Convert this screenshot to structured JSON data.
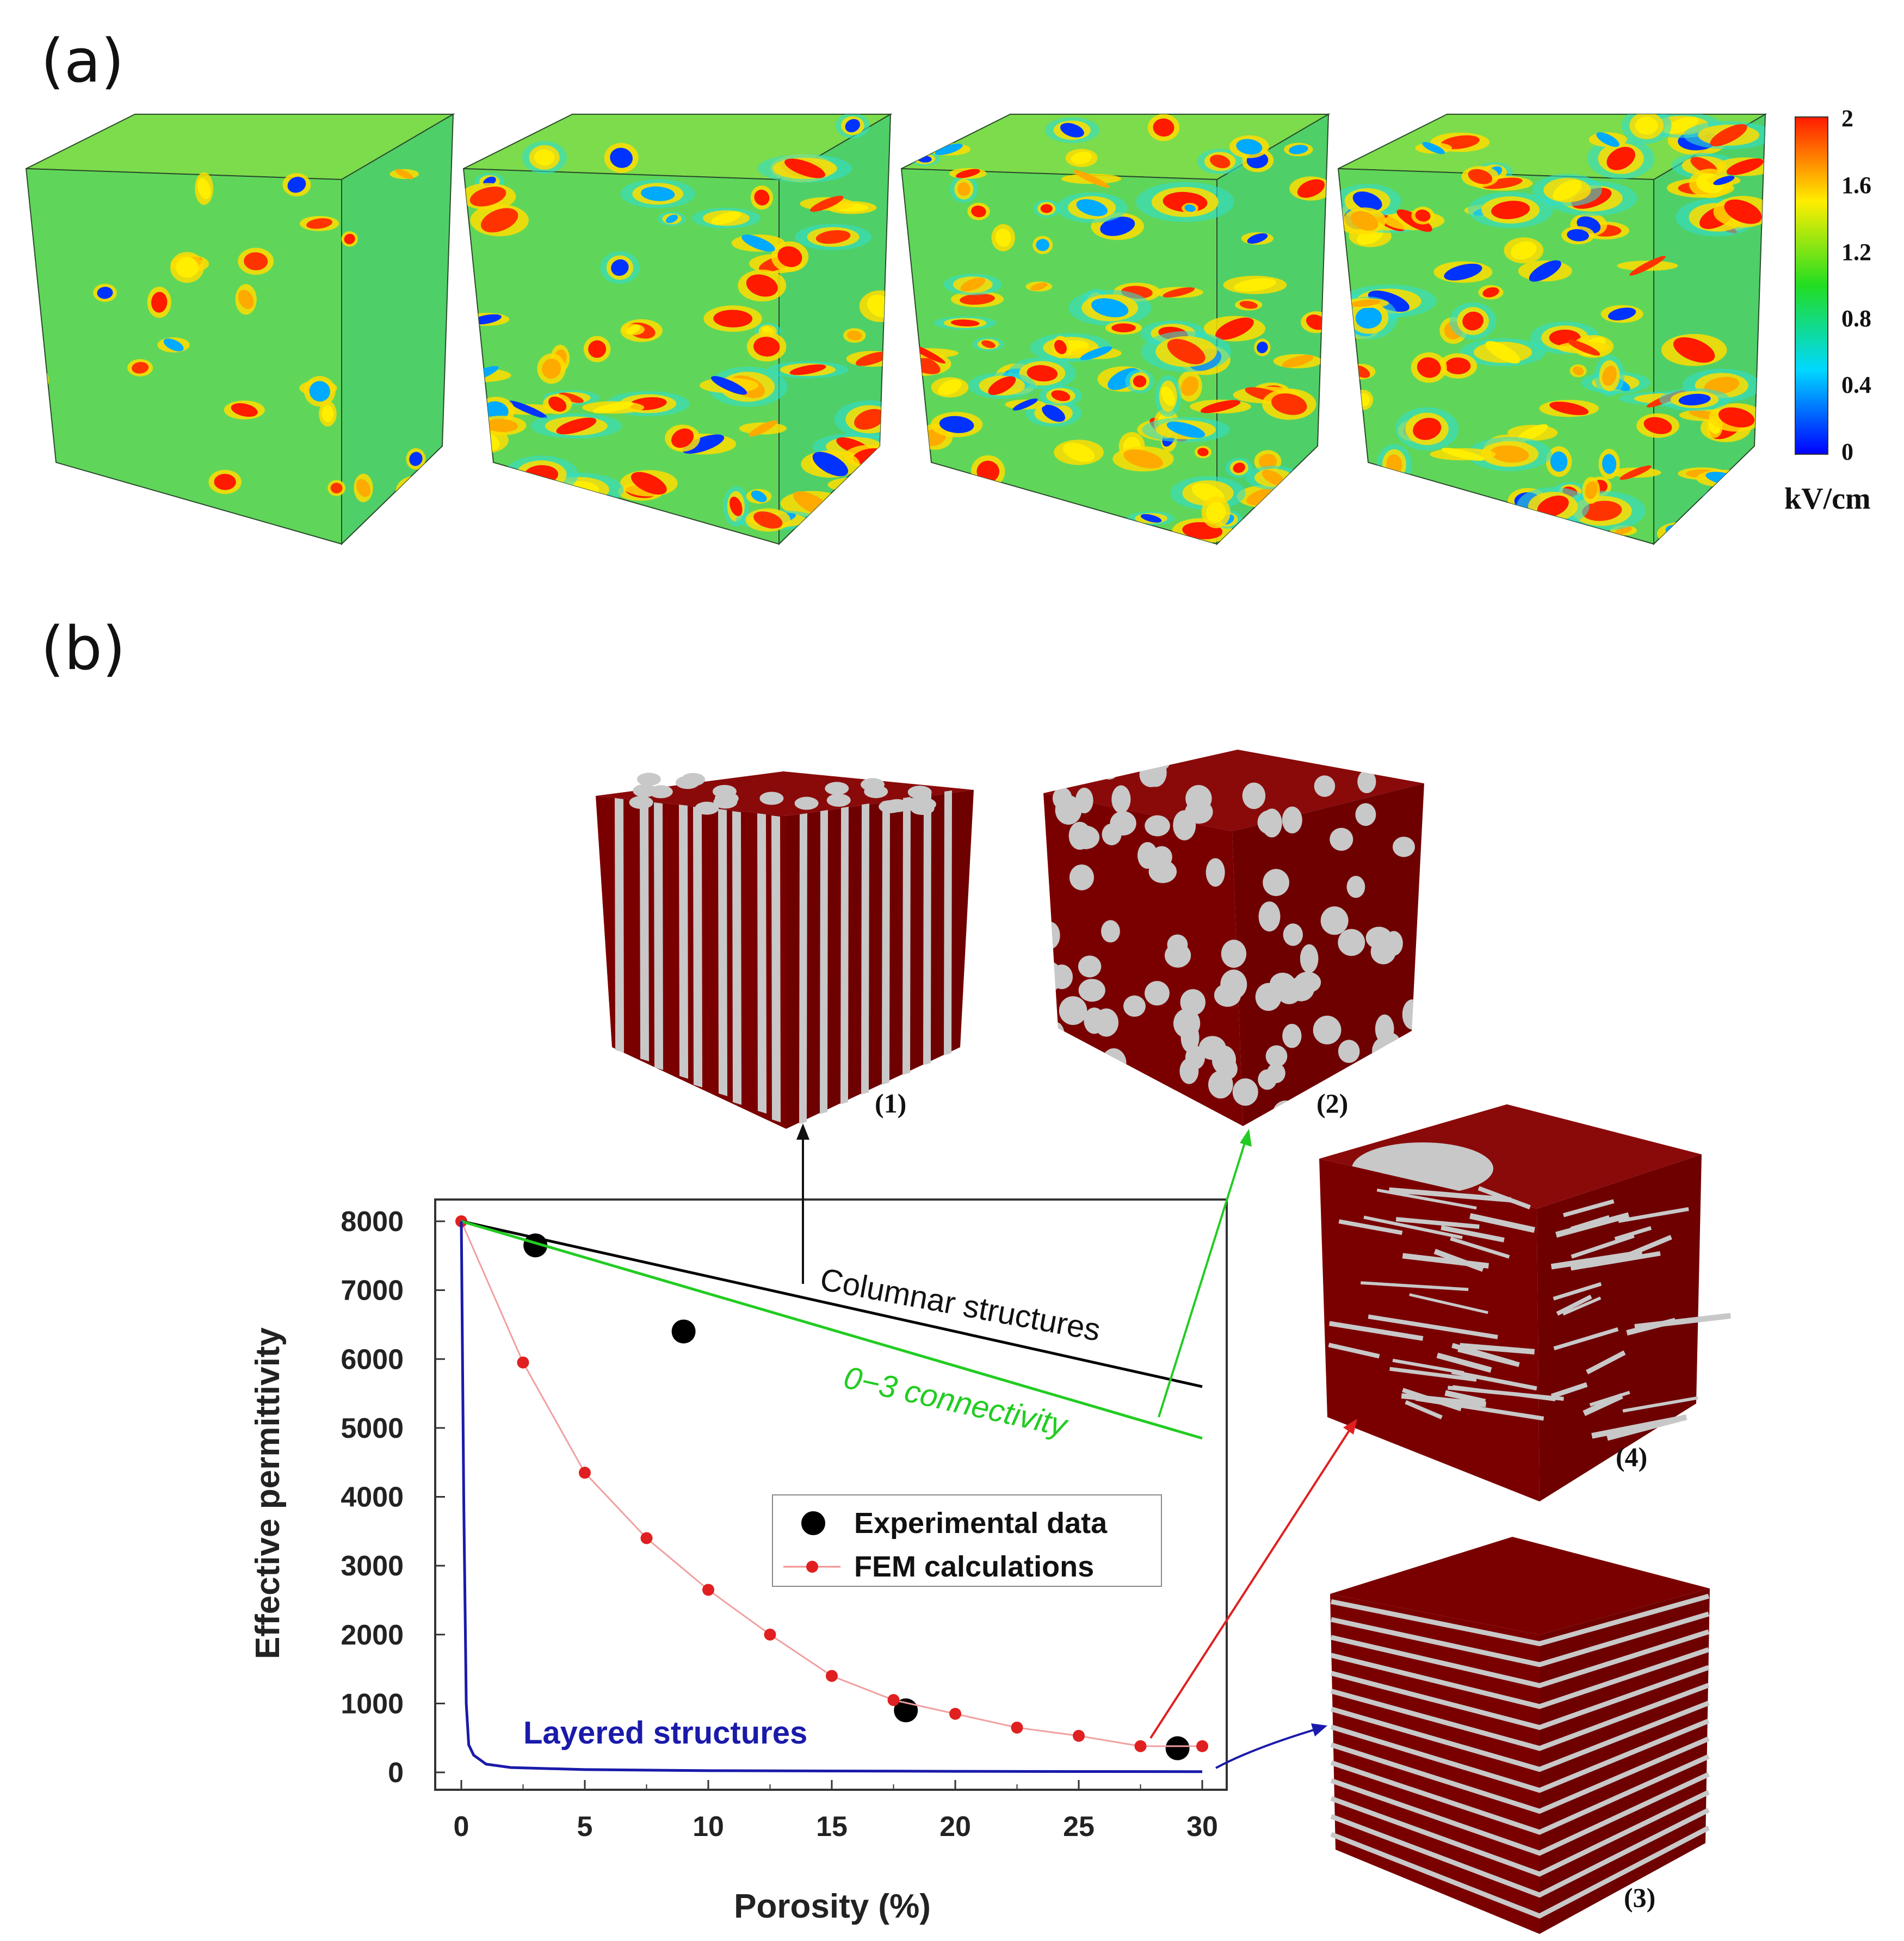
{
  "panels": {
    "a": "(a)",
    "b": "(b)"
  },
  "colorbar": {
    "ticks": [
      "2",
      "1.6",
      "1.2",
      "0.8",
      "0.4",
      "0"
    ],
    "unit": "kV/cm",
    "colors": [
      "#0000ff",
      "#00e5ff",
      "#22dd22",
      "#ffee00",
      "#ff2200"
    ]
  },
  "field_cubes": [
    {
      "name": "field-cube-1",
      "hotspots": 24
    },
    {
      "name": "field-cube-2",
      "hotspots": 70
    },
    {
      "name": "field-cube-3",
      "hotspots": 85
    },
    {
      "name": "field-cube-4",
      "hotspots": 95
    }
  ],
  "structure_cubes": {
    "labels": [
      "(1)",
      "(2)",
      "(3)",
      "(4)"
    ],
    "matrix_color": "#7a0000",
    "pore_color": "#c8c8c8"
  },
  "chart_data": {
    "type": "line",
    "xlabel": "Porosity (%)",
    "ylabel": "Effective permittivity",
    "xlim": [
      0,
      30
    ],
    "ylim": [
      0,
      8000
    ],
    "xticks": [
      "0",
      "5",
      "10",
      "15",
      "20",
      "25",
      "30"
    ],
    "yticks": [
      "0",
      "1000",
      "2000",
      "3000",
      "4000",
      "5000",
      "6000",
      "7000",
      "8000"
    ],
    "legend": {
      "position": "center-right",
      "entries": [
        "Experimental data",
        "FEM calculations"
      ]
    },
    "series": [
      {
        "name": "Experimental data",
        "kind": "scatter",
        "color": "#000000",
        "x": [
          3,
          9,
          18,
          29
        ],
        "y": [
          7650,
          6400,
          900,
          350
        ]
      },
      {
        "name": "FEM calculations",
        "kind": "line-marker",
        "color": "#e02020",
        "x": [
          0,
          2.5,
          5,
          7.5,
          10,
          12.5,
          15,
          17.5,
          20,
          22.5,
          25,
          27.5,
          30
        ],
        "y": [
          8000,
          5950,
          4350,
          3400,
          2650,
          2000,
          1400,
          1050,
          850,
          650,
          530,
          380,
          380
        ]
      },
      {
        "name": "Columnar structures",
        "kind": "line",
        "color": "#000000",
        "x": [
          0,
          30
        ],
        "y": [
          8000,
          5600
        ]
      },
      {
        "name": "0−3 connectivity",
        "kind": "line",
        "color": "#22cc22",
        "x": [
          0,
          30
        ],
        "y": [
          8000,
          4850
        ]
      },
      {
        "name": "Layered structures",
        "kind": "line",
        "color": "#1a1aaa",
        "x": [
          0,
          0.1,
          0.2,
          0.3,
          0.5,
          1,
          2,
          5,
          10,
          15,
          20,
          25,
          30
        ],
        "y": [
          8000,
          3900,
          1000,
          400,
          250,
          120,
          70,
          40,
          25,
          20,
          15,
          12,
          10
        ]
      }
    ],
    "annotations": [
      "Columnar structures",
      "0−3 connectivity",
      "Layered structures"
    ]
  }
}
